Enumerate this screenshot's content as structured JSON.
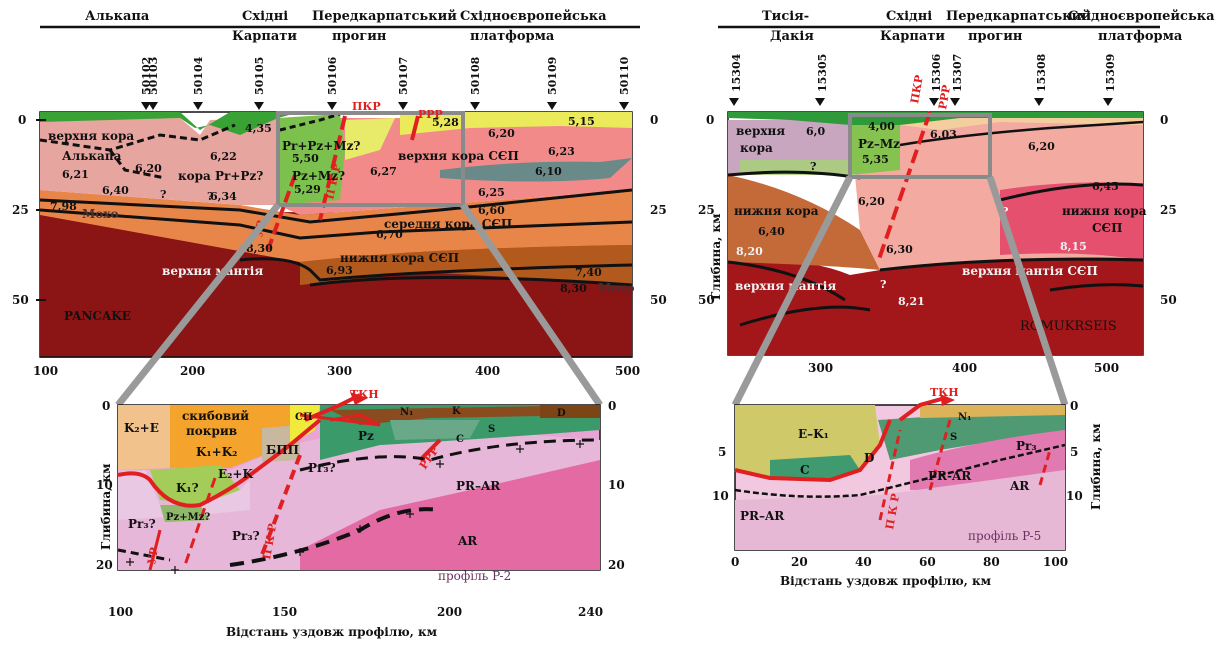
{
  "left_top": {
    "regions": [
      "Алькапа",
      "Східні",
      "Карпати",
      "Передкарпатський",
      "прогин",
      "Східноєвропейська",
      "платформа"
    ],
    "stations": [
      "50102",
      "50103",
      "50104",
      "50105",
      "50106",
      "50107",
      "50108",
      "50109",
      "50110"
    ],
    "faults": {
      "pkr": "ПКР",
      "prr": "РРР",
      "ur": "УР",
      "pk": "П К Р"
    },
    "labels": {
      "upper_crust": "верхня кора",
      "alcapa": "Алькапа",
      "crust_pr": "кора Pr+Pz?",
      "moho_left": "Мохо",
      "pr_pz_mz": "Pr+Pz+Mz?",
      "pz_mz": "Pz+Mz?",
      "upper_crust_sep": "верхня кора СЄП",
      "middle_crust": "середня  кора СЄП",
      "lower_crust": "нижня кора СЄП",
      "upper_mantle": "верхня   мантія",
      "moho_right": "Мохо",
      "model": "PANCAKE"
    },
    "velocities": [
      "6,21",
      "6,20",
      "6,22",
      "4,35",
      "5,50",
      "5,29",
      "6,27",
      "5,28",
      "6,20",
      "5,15",
      "6,23",
      "6,10",
      "6,40",
      "6,34",
      "7,98",
      "6,25",
      "6,60",
      "6,70",
      "8,30",
      "6,93",
      "7,40",
      "8,30"
    ],
    "unknowns": [
      "?",
      "?"
    ],
    "y_ticks": [
      "0",
      "25",
      "50"
    ],
    "x_ticks": [
      "100",
      "200",
      "300",
      "400",
      "500"
    ]
  },
  "right_top": {
    "regions": [
      "Тисія-",
      "Дакія",
      "Східні",
      "Карпати",
      "Передкарпатський",
      "прогин",
      "Східноєвропейська",
      "платформа"
    ],
    "stations": [
      "15304",
      "15305",
      "15306",
      "15307",
      "15308",
      "15309"
    ],
    "faults": {
      "pkr": "ПКР",
      "prr": "РРР"
    },
    "labels": {
      "upper_crust": "верхня",
      "upper_crust2": "кора",
      "pz_mz": "Pz–Mz",
      "lower_crust": "нижня кора",
      "lower_crust_sep": "нижня кора",
      "sep": "СЄП",
      "upper_mantle": "верхня  мантія",
      "upper_mantle_sep": "верхня  мантія СЄП",
      "model": "ROMUKRSEIS"
    },
    "velocities": [
      "6,0",
      "4,00",
      "6,03",
      "5,35",
      "6,20",
      "6,20",
      "6,45",
      "6,40",
      "6,30",
      "8,20",
      "8,15",
      "8,21"
    ],
    "unknowns": [
      "?",
      "?",
      "?",
      "?"
    ],
    "y_axis_label": "Глибина, км",
    "y_ticks": [
      "0",
      "25",
      "50"
    ],
    "x_ticks": [
      "300",
      "400",
      "500"
    ]
  },
  "left_bottom": {
    "labels": {
      "k2e": "K₂+E",
      "cover": "скибовий",
      "cover2": "покрив",
      "k1k2": "K₁+K₂",
      "bpp": "БПП",
      "e2k": "E₂+K",
      "k1": "K₁?",
      "pz_mz": "Pz+Mz?",
      "pr3a": "Pr₃?",
      "pr3b": "Pr₃?",
      "pr3c": "Pr₃?",
      "pz": "Pz",
      "pr_ar": "PR–AR",
      "ar": "AR",
      "sp": "СП",
      "n1": "N₁",
      "k": "K",
      "s": "S",
      "c": "C",
      "d": "D",
      "profile": "профіль P-2"
    },
    "faults": {
      "tkn": "ТКН",
      "ur": "УР",
      "pk": "П К Р",
      "rrr": "РРР"
    },
    "y_axis_label": "Глибина, км",
    "y_ticks": [
      "0",
      "10",
      "20"
    ],
    "x_ticks": [
      "100",
      "150",
      "200",
      "240"
    ],
    "x_axis_label": "Відстань уздовж профілю, км"
  },
  "right_bottom": {
    "labels": {
      "ek1": "E–K₁",
      "c": "C",
      "d": "D",
      "pr_ar": "PR–AR",
      "pr_ar2": "PR-AR",
      "ar": "AR",
      "pr3": "Pr₃",
      "n1": "N₁",
      "s": "S",
      "profile": "профіль P-5"
    },
    "faults": {
      "tkn": "ТКН",
      "pk": "П К Р"
    },
    "y_axis_label": "Глибина, км",
    "y_ticks": [
      "0",
      "5",
      "10"
    ],
    "x_ticks": [
      "0",
      "20",
      "40",
      "60",
      "80",
      "100"
    ],
    "x_axis_label": "Відстань уздовж профілю, км"
  },
  "colors": {
    "mantle": "#8b1414",
    "lower": "#a8301a",
    "middle": "#e8864a",
    "upper": "#e79a90",
    "sep_upper": "#f08a86",
    "green": "#6abf4b",
    "yellow": "#f1ef8a",
    "pink": "#f7bfd0",
    "orange": "#f4a32c",
    "red": "#e02020",
    "magenta": "#e8679a"
  }
}
